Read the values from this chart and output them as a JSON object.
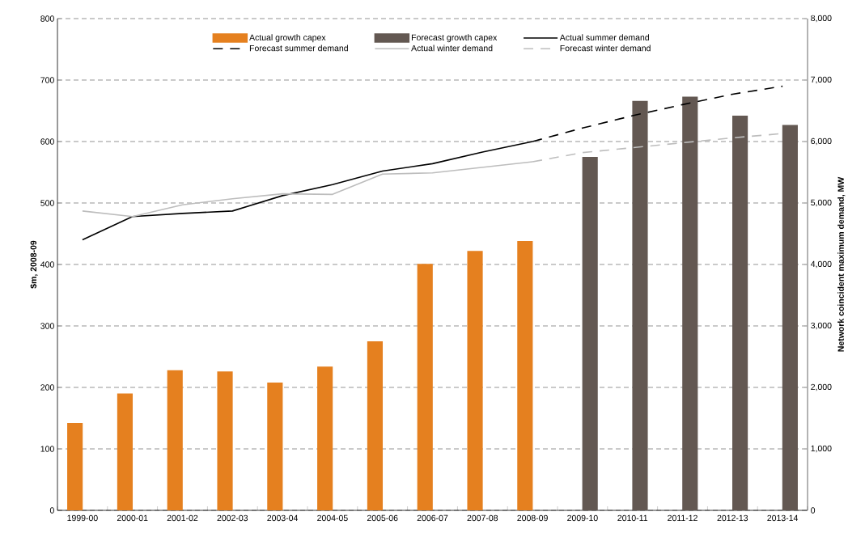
{
  "chart_data": {
    "type": "bar",
    "categories": [
      "1999-00",
      "2000-01",
      "2001-02",
      "2002-03",
      "2003-04",
      "2004-05",
      "2005-06",
      "2006-07",
      "2007-08",
      "2008-09",
      "2009-10",
      "2010-11",
      "2011-12",
      "2012-13",
      "2013-14"
    ],
    "ylabel": "$m, 2008-09",
    "y2label": "Network coincident maximum demand, MW",
    "ylim": [
      0,
      800
    ],
    "yticks": [
      0,
      100,
      200,
      300,
      400,
      500,
      600,
      700,
      800
    ],
    "y2lim": [
      0,
      8000
    ],
    "y2ticks": [
      {
        "value": 0,
        "label": "0"
      },
      {
        "value": 1000,
        "label": "1,000"
      },
      {
        "value": 2000,
        "label": "2,000"
      },
      {
        "value": 3000,
        "label": "3,000"
      },
      {
        "value": 4000,
        "label": "4,000"
      },
      {
        "value": 5000,
        "label": "5,000"
      },
      {
        "value": 6000,
        "label": "6,000"
      },
      {
        "value": 7000,
        "label": "7,000"
      },
      {
        "value": 8000,
        "label": "8,000"
      }
    ],
    "grid": "y",
    "legend": "top",
    "series": [
      {
        "name": "Actual growth capex",
        "color": "#e5801f",
        "values": [
          142,
          190,
          228,
          226,
          208,
          234,
          275,
          401,
          422,
          438,
          null,
          null,
          null,
          null,
          null
        ]
      },
      {
        "name": "Forecast growth capex",
        "color": "#635852",
        "values": [
          null,
          null,
          null,
          null,
          null,
          null,
          null,
          null,
          null,
          null,
          575,
          666,
          673,
          642,
          627
        ]
      },
      {
        "name": "Actual summer demand",
        "type": "line",
        "axis": "y2",
        "color": "#000000",
        "line_style": "solid",
        "values": [
          4400,
          4780,
          4830,
          4870,
          5120,
          5300,
          5520,
          5640,
          5830,
          6000,
          null,
          null,
          null,
          null,
          null
        ]
      },
      {
        "name": "Forecast summer demand",
        "type": "line",
        "axis": "y2",
        "color": "#000000",
        "line_style": "dashed",
        "values": [
          null,
          null,
          null,
          null,
          null,
          null,
          null,
          null,
          null,
          6000,
          6220,
          6420,
          6600,
          6770,
          6900
        ]
      },
      {
        "name": "Actual winter demand",
        "type": "line",
        "axis": "y2",
        "color": "#bdbdbd",
        "line_style": "solid",
        "values": [
          4870,
          4780,
          4970,
          5070,
          5150,
          5140,
          5470,
          5490,
          5580,
          5670,
          null,
          null,
          null,
          null,
          null
        ]
      },
      {
        "name": "Forecast winter demand",
        "type": "line",
        "axis": "y2",
        "color": "#bdbdbd",
        "line_style": "dashed",
        "values": [
          null,
          null,
          null,
          null,
          null,
          null,
          null,
          null,
          null,
          5670,
          5820,
          5900,
          5980,
          6060,
          6130
        ]
      }
    ]
  }
}
